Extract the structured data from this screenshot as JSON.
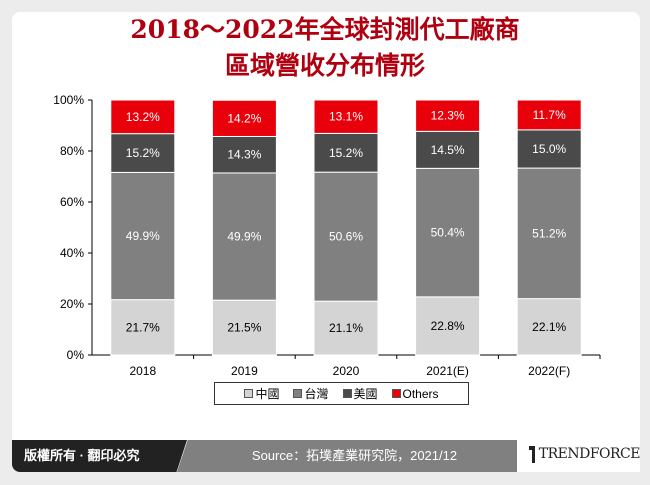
{
  "title_lines": [
    "2018～2022年全球封測代工廠商",
    "區域營收分布情形"
  ],
  "footer": {
    "copyright": "版權所有 · 翻印必究",
    "source": "Source：拓墣產業研究院，2021/12",
    "logo": "TrendForce"
  },
  "chart_data": {
    "type": "bar",
    "stacked": true,
    "categories": [
      "2018",
      "2019",
      "2020",
      "2021(E)",
      "2022(F)"
    ],
    "ylim": [
      0,
      100
    ],
    "yticks": [
      "0%",
      "20%",
      "40%",
      "60%",
      "80%",
      "100%"
    ],
    "legend_position": "bottom",
    "series": [
      {
        "name": "中國",
        "color": "#d4d4d4",
        "values": [
          21.7,
          21.5,
          21.1,
          22.8,
          22.1
        ]
      },
      {
        "name": "台灣",
        "color": "#808080",
        "values": [
          49.9,
          49.9,
          50.6,
          50.4,
          51.2
        ]
      },
      {
        "name": "美國",
        "color": "#4a4a4a",
        "values": [
          15.2,
          14.3,
          15.2,
          14.5,
          15.0
        ]
      },
      {
        "name": "Others",
        "color": "#e8000b",
        "values": [
          13.2,
          14.2,
          13.1,
          12.3,
          11.7
        ]
      }
    ]
  }
}
